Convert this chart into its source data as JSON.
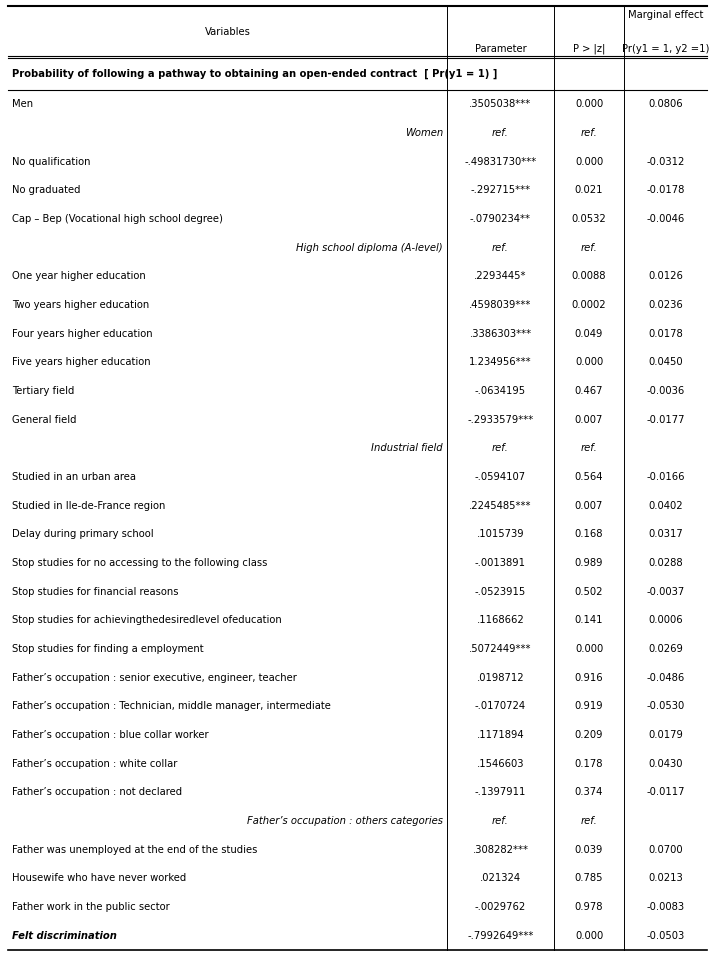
{
  "col_headers_line1": [
    "Variables",
    "Parameter",
    "P > |z|",
    "Marginal effect"
  ],
  "col_headers_line2": [
    "",
    "",
    "",
    "Pr(y1 = 1, y2 =1)"
  ],
  "section_header": "Probability of following a pathway to obtaining an open-ended contract  [ Pr(y1 = 1) ]",
  "rows": [
    {
      "label": "Men",
      "align": "left",
      "bold": false,
      "italic": false,
      "param": ".3505038***",
      "pval": "0.000",
      "me": "0.0806"
    },
    {
      "label": "Women",
      "align": "right",
      "bold": false,
      "italic": true,
      "param": "ref.",
      "pval": "ref.",
      "me": ""
    },
    {
      "label": "No qualification",
      "align": "left",
      "bold": false,
      "italic": false,
      "param": "-.49831730***",
      "pval": "0.000",
      "me": "-0.0312"
    },
    {
      "label": "No graduated",
      "align": "left",
      "bold": false,
      "italic": false,
      "param": "-.292715***",
      "pval": "0.021",
      "me": "-0.0178"
    },
    {
      "label": "Cap – Bep (Vocational high school degree)",
      "align": "left",
      "bold": false,
      "italic": false,
      "param": "-.0790234**",
      "pval": "0.0532",
      "me": "-0.0046"
    },
    {
      "label": "High school diploma (A-level)",
      "align": "right",
      "bold": false,
      "italic": true,
      "param": "ref.",
      "pval": "ref.",
      "me": ""
    },
    {
      "label": "One year higher education",
      "align": "left",
      "bold": false,
      "italic": false,
      "param": ".2293445*",
      "pval": "0.0088",
      "me": "0.0126"
    },
    {
      "label": "Two years higher education",
      "align": "left",
      "bold": false,
      "italic": false,
      "param": ".4598039***",
      "pval": "0.0002",
      "me": "0.0236"
    },
    {
      "label": "Four years higher education",
      "align": "left",
      "bold": false,
      "italic": false,
      "param": ".3386303***",
      "pval": "0.049",
      "me": "0.0178"
    },
    {
      "label": "Five years higher education",
      "align": "left",
      "bold": false,
      "italic": false,
      "param": "1.234956***",
      "pval": "0.000",
      "me": "0.0450"
    },
    {
      "label": "Tertiary field",
      "align": "left",
      "bold": false,
      "italic": false,
      "param": "-.0634195",
      "pval": "0.467",
      "me": "-0.0036"
    },
    {
      "label": "General field",
      "align": "left",
      "bold": false,
      "italic": false,
      "param": "-.2933579***",
      "pval": "0.007",
      "me": "-0.0177"
    },
    {
      "label": "Industrial field",
      "align": "right",
      "bold": false,
      "italic": true,
      "param": "ref.",
      "pval": "ref.",
      "me": ""
    },
    {
      "label": "Studied in an urban area",
      "align": "left",
      "bold": false,
      "italic": false,
      "param": "-.0594107",
      "pval": "0.564",
      "me": "-0.0166"
    },
    {
      "label": "Studied in Ile-de-France region",
      "align": "left",
      "bold": false,
      "italic": false,
      "param": ".2245485***",
      "pval": "0.007",
      "me": "0.0402"
    },
    {
      "label": "Delay during primary school",
      "align": "left",
      "bold": false,
      "italic": false,
      "param": ".1015739",
      "pval": "0.168",
      "me": "0.0317"
    },
    {
      "label": "Stop studies for no accessing to the following class",
      "align": "left",
      "bold": false,
      "italic": false,
      "param": "-.0013891",
      "pval": "0.989",
      "me": "0.0288"
    },
    {
      "label": "Stop studies for financial reasons",
      "align": "left",
      "bold": false,
      "italic": false,
      "param": "-.0523915",
      "pval": "0.502",
      "me": "-0.0037"
    },
    {
      "label": "Stop studies for achievingthedesiredlevel ofeducation",
      "align": "left",
      "bold": false,
      "italic": false,
      "param": ".1168662",
      "pval": "0.141",
      "me": "0.0006"
    },
    {
      "label": "Stop studies for finding a employment",
      "align": "left",
      "bold": false,
      "italic": false,
      "param": ".5072449***",
      "pval": "0.000",
      "me": "0.0269"
    },
    {
      "label": "Father’s occupation : senior executive, engineer, teacher",
      "align": "left",
      "bold": false,
      "italic": false,
      "param": ".0198712",
      "pval": "0.916",
      "me": "-0.0486"
    },
    {
      "label": "Father’s occupation : Technician, middle manager, intermediate",
      "align": "left",
      "bold": false,
      "italic": false,
      "param": "-.0170724",
      "pval": "0.919",
      "me": "-0.0530"
    },
    {
      "label": "Father’s occupation : blue collar worker",
      "align": "left",
      "bold": false,
      "italic": false,
      "param": ".1171894",
      "pval": "0.209",
      "me": "0.0179"
    },
    {
      "label": "Father’s occupation : white collar",
      "align": "left",
      "bold": false,
      "italic": false,
      "param": ".1546603",
      "pval": "0.178",
      "me": "0.0430"
    },
    {
      "label": "Father’s occupation : not declared",
      "align": "left",
      "bold": false,
      "italic": false,
      "param": "-.1397911",
      "pval": "0.374",
      "me": "-0.0117"
    },
    {
      "label": "Father’s occupation : others categories",
      "align": "right",
      "bold": false,
      "italic": true,
      "param": "ref.",
      "pval": "ref.",
      "me": ""
    },
    {
      "label": "Father was unemployed at the end of the studies",
      "align": "left",
      "bold": false,
      "italic": false,
      "param": ".308282***",
      "pval": "0.039",
      "me": "0.0700"
    },
    {
      "label": "Housewife who have never worked",
      "align": "left",
      "bold": false,
      "italic": false,
      "param": ".021324",
      "pval": "0.785",
      "me": "0.0213"
    },
    {
      "label": "Father work in the public sector",
      "align": "left",
      "bold": false,
      "italic": false,
      "param": "-.0029762",
      "pval": "0.978",
      "me": "-0.0083"
    },
    {
      "label": "Felt discrimination",
      "align": "left",
      "bold": true,
      "italic": true,
      "param": "-.7992649***",
      "pval": "0.000",
      "me": "-0.0503"
    }
  ],
  "background_color": "#ffffff",
  "text_color": "#000000",
  "font_size": 7.2,
  "header_font_size": 7.2
}
